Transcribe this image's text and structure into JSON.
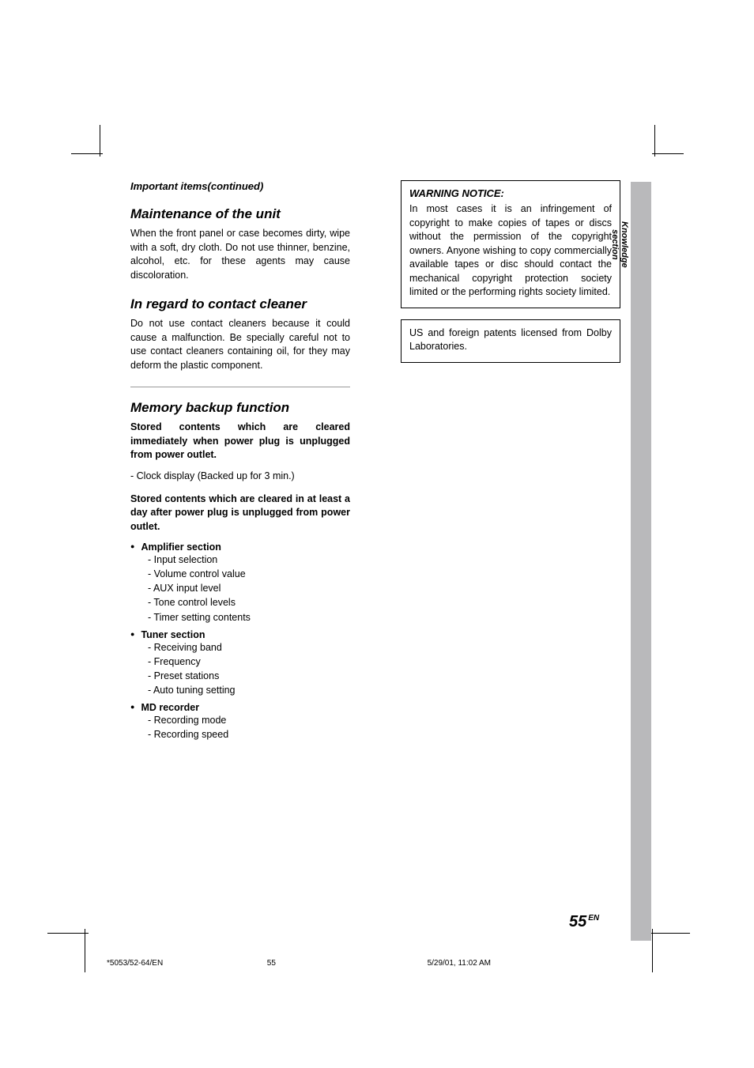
{
  "running_head": "Important items(continued)",
  "section_tab": {
    "line1": "Knowledge",
    "line2": "section"
  },
  "page_number": "55",
  "page_lang": "EN",
  "left": {
    "maint_title": "Maintenance of the unit",
    "maint_body": "When the front panel or case becomes dirty, wipe with a soft, dry cloth. Do not use thinner, benzine, alcohol, etc. for these agents may cause discoloration.",
    "cleaner_title": "In regard to contact cleaner",
    "cleaner_body": "Do not use contact cleaners because it could cause a malfunction. Be specially careful not to use contact cleaners containing oil, for they may deform the plastic component.",
    "memory_title": "Memory backup function",
    "memory_intro1": "Stored contents which are cleared immediately when power plug is unplugged from power outlet.",
    "clock_line": "- Clock display (Backed up for 3 min.)",
    "memory_intro2": "Stored contents which are cleared in at least a day after power plug is unplugged from power outlet.",
    "groups": [
      {
        "head": "Amplifier section",
        "items": [
          "Input selection",
          "Volume control value",
          "AUX input level",
          "Tone control levels",
          "Timer setting contents"
        ]
      },
      {
        "head": "Tuner section",
        "items": [
          "Receiving band",
          "Frequency",
          "Preset stations",
          "Auto tuning setting"
        ]
      },
      {
        "head": "MD recorder",
        "items": [
          "Recording mode",
          "Recording speed"
        ]
      }
    ]
  },
  "right": {
    "warning_title": "WARNING NOTICE:",
    "warning_body": "In most cases it is an infringement of copyright to make copies of tapes or discs without the permission of the copyright owners. Anyone wishing to copy commercially available tapes or disc should contact the mechanical copyright protection society limited or the performing rights society limited.",
    "dolby": "US and foreign patents licensed from Dolby Laboratories."
  },
  "footer": {
    "file": "*5053/52-64/EN",
    "page": "55",
    "stamp": "5/29/01, 11:02 AM"
  }
}
